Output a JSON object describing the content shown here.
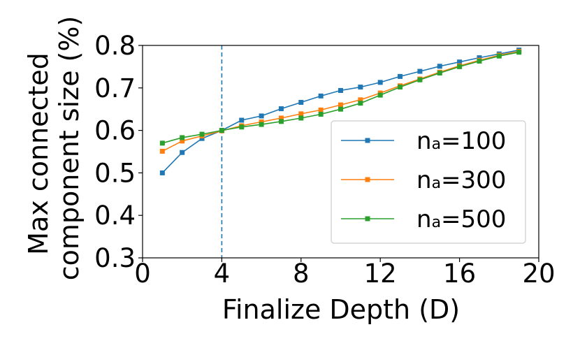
{
  "chart_data": {
    "type": "line",
    "title": "",
    "xlabel": "Finalize Depth (D)",
    "ylabel_lines": [
      "Max connected",
      "component size (%)"
    ],
    "xlim": [
      0,
      20
    ],
    "ylim": [
      0.3,
      0.8
    ],
    "x_ticks": [
      0,
      4,
      8,
      12,
      16,
      20
    ],
    "y_ticks": [
      0.3,
      0.4,
      0.5,
      0.6,
      0.7,
      0.8
    ],
    "y_tick_labels": [
      "0.3",
      "0.4",
      "0.5",
      "0.6",
      "0.7",
      "0.8"
    ],
    "grid": false,
    "legend_position": "center-right",
    "reference_line": {
      "x": 4,
      "style": "dashed",
      "color": "#1f77b4"
    },
    "x": [
      1,
      2,
      3,
      4,
      5,
      6,
      7,
      8,
      9,
      10,
      11,
      12,
      13,
      14,
      15,
      16,
      17,
      18,
      19
    ],
    "series": [
      {
        "name_main": "n",
        "name_sub": "a",
        "name_rest": "=100",
        "color": "#1f77b4",
        "marker": "square",
        "values": [
          0.5,
          0.548,
          0.581,
          0.6,
          0.624,
          0.634,
          0.651,
          0.666,
          0.681,
          0.694,
          0.702,
          0.713,
          0.727,
          0.739,
          0.751,
          0.761,
          0.771,
          0.78,
          0.789
        ]
      },
      {
        "name_main": "n",
        "name_sub": "a",
        "name_rest": "=300",
        "color": "#ff7f0e",
        "marker": "square",
        "values": [
          0.551,
          0.575,
          0.587,
          0.599,
          0.611,
          0.62,
          0.629,
          0.639,
          0.648,
          0.66,
          0.672,
          0.688,
          0.705,
          0.721,
          0.737,
          0.752,
          0.765,
          0.777,
          0.786
        ]
      },
      {
        "name_main": "n",
        "name_sub": "a",
        "name_rest": "=500",
        "color": "#2ca02c",
        "marker": "square",
        "values": [
          0.57,
          0.583,
          0.591,
          0.6,
          0.608,
          0.614,
          0.621,
          0.629,
          0.638,
          0.65,
          0.664,
          0.683,
          0.702,
          0.719,
          0.735,
          0.75,
          0.763,
          0.775,
          0.784
        ]
      }
    ]
  }
}
